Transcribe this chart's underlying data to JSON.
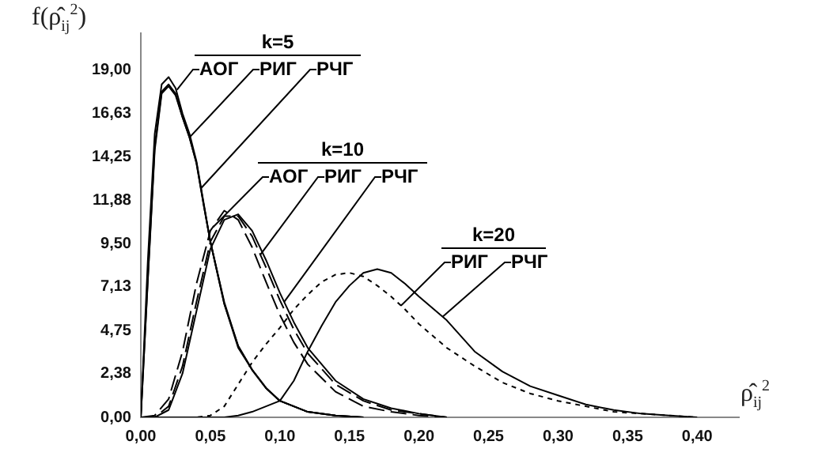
{
  "chart_data": {
    "type": "line",
    "ylabel": "f(ρ̂$_{ij}$$^{2}$)",
    "xlabel": "ρ̂$_{ij}$$^{2}$",
    "annotations": [
      "k=5",
      {
        "text": "АОГ",
        "x": 0.026,
        "y": 17.9
      },
      {
        "text": "РИГ",
        "x": 0.035,
        "y": 15.3
      },
      {
        "text": "РЧГ",
        "x": 0.043,
        "y": 12.5
      },
      "k=10",
      {
        "text": "АОГ",
        "x": 0.052,
        "y": 10.4
      },
      {
        "text": "РИГ",
        "x": 0.086,
        "y": 8.9
      },
      {
        "text": "РЧГ",
        "x": 0.103,
        "y": 6.3
      },
      "k=20",
      {
        "text": "РИГ",
        "x": 0.187,
        "y": 6.1
      },
      {
        "text": "РЧГ",
        "x": 0.217,
        "y": 5.5
      }
    ],
    "xlim": [
      0,
      0.43
    ],
    "ylim": [
      0,
      21
    ],
    "xticks": [
      {
        "value": 0,
        "label": "0,00"
      },
      {
        "value": 0.05,
        "label": "0,05"
      },
      {
        "value": 0.1,
        "label": "0,10"
      },
      {
        "value": 0.15,
        "label": "0,15"
      },
      {
        "value": 0.2,
        "label": "0,20"
      },
      {
        "value": 0.25,
        "label": "0,25"
      },
      {
        "value": 0.3,
        "label": "0,30"
      },
      {
        "value": 0.35,
        "label": "0,35"
      },
      {
        "value": 0.4,
        "label": "0,40"
      }
    ],
    "yticks": [
      {
        "value": 0,
        "label": "0,00"
      },
      {
        "value": 2.38,
        "label": "2,38"
      },
      {
        "value": 4.75,
        "label": "4,75"
      },
      {
        "value": 7.13,
        "label": "7,13"
      },
      {
        "value": 9.5,
        "label": "9,50"
      },
      {
        "value": 11.88,
        "label": "11,88"
      },
      {
        "value": 14.25,
        "label": "14,25"
      },
      {
        "value": 16.63,
        "label": "16,63"
      },
      {
        "value": 19,
        "label": "19,00"
      }
    ],
    "grid": false,
    "marker": "none",
    "series": [
      {
        "color": "#000000",
        "line_style": "solid",
        "x": [
          0,
          0.005,
          0.01,
          0.015,
          0.02,
          0.025,
          0.03,
          0.035,
          0.04,
          0.045,
          0.05,
          0.06,
          0.07,
          0.08,
          0.09,
          0.1,
          0.12,
          0.14,
          0.16
        ],
        "values": [
          0,
          8.5,
          15.5,
          18.2,
          18.6,
          18,
          16.6,
          15.5,
          14,
          11.8,
          9.6,
          6.2,
          3.8,
          2.6,
          1.6,
          0.9,
          0.3,
          0.1,
          0
        ]
      },
      {
        "color": "#000000",
        "line_style": "solid",
        "x": [
          0,
          0.005,
          0.01,
          0.015,
          0.02,
          0.025,
          0.03,
          0.035,
          0.04,
          0.045,
          0.05,
          0.06,
          0.07,
          0.08,
          0.09,
          0.1,
          0.12,
          0.14,
          0.16
        ],
        "values": [
          0,
          7.5,
          14.8,
          17.8,
          18.2,
          17.7,
          16.4,
          15.3,
          13.9,
          11.7,
          9.6,
          6.2,
          3.9,
          2.6,
          1.6,
          0.9,
          0.3,
          0.1,
          0
        ]
      },
      {
        "color": "#000000",
        "line_style": "solid",
        "x": [
          0,
          0.005,
          0.01,
          0.015,
          0.02,
          0.025,
          0.03,
          0.035,
          0.04,
          0.045,
          0.05,
          0.06,
          0.07,
          0.08,
          0.09,
          0.1,
          0.12,
          0.14,
          0.16
        ],
        "values": [
          0,
          7.4,
          14.6,
          17.7,
          18.1,
          17.6,
          16.4,
          15.3,
          13.9,
          11.7,
          9.6,
          6.3,
          3.9,
          2.6,
          1.6,
          0.9,
          0.3,
          0.1,
          0
        ]
      },
      {
        "color": "#000000",
        "line_style": "dashed",
        "x": [
          0,
          0.01,
          0.02,
          0.03,
          0.04,
          0.05,
          0.06,
          0.07,
          0.08,
          0.09,
          0.1,
          0.11,
          0.12,
          0.14,
          0.16,
          0.18,
          0.2,
          0.22
        ],
        "values": [
          0,
          0.1,
          1,
          3.6,
          7.3,
          10.2,
          11.3,
          10.8,
          9.3,
          7.4,
          5.6,
          4.1,
          2.9,
          1.4,
          0.6,
          0.3,
          0.1,
          0
        ]
      },
      {
        "color": "#000000",
        "line_style": "dashed",
        "x": [
          0,
          0.01,
          0.02,
          0.03,
          0.04,
          0.05,
          0.06,
          0.07,
          0.08,
          0.09,
          0.1,
          0.11,
          0.12,
          0.14,
          0.16,
          0.18,
          0.2,
          0.22
        ],
        "values": [
          0,
          0,
          0.6,
          2.8,
          6.3,
          9.6,
          11,
          11,
          9.9,
          8.2,
          6.4,
          4.8,
          3.5,
          1.8,
          0.9,
          0.4,
          0.2,
          0
        ]
      },
      {
        "color": "#000000",
        "line_style": "solid",
        "x": [
          0,
          0.01,
          0.02,
          0.03,
          0.04,
          0.05,
          0.06,
          0.07,
          0.08,
          0.09,
          0.1,
          0.11,
          0.12,
          0.14,
          0.16,
          0.18,
          0.2,
          0.22
        ],
        "values": [
          0,
          0,
          0.4,
          2.4,
          5.8,
          9.2,
          10.8,
          11.1,
          10.2,
          8.6,
          6.8,
          5.2,
          3.8,
          2,
          1,
          0.5,
          0.2,
          0
        ]
      },
      {
        "color": "#000000",
        "line_style": "dotted",
        "x": [
          0,
          0.04,
          0.05,
          0.06,
          0.07,
          0.08,
          0.09,
          0.1,
          0.11,
          0.12,
          0.13,
          0.14,
          0.15,
          0.16,
          0.17,
          0.18,
          0.19,
          0.2,
          0.22,
          0.24,
          0.26,
          0.28,
          0.3,
          0.32,
          0.34,
          0.36,
          0.38,
          0.4
        ],
        "values": [
          0,
          0,
          0.1,
          0.6,
          1.8,
          3,
          4,
          4.9,
          5.9,
          6.7,
          7.4,
          7.8,
          7.9,
          7.7,
          7.2,
          6.6,
          5.9,
          5.1,
          3.8,
          2.8,
          1.9,
          1.3,
          0.9,
          0.6,
          0.3,
          0.2,
          0.1,
          0
        ]
      },
      {
        "color": "#000000",
        "line_style": "solid",
        "x": [
          0,
          0.06,
          0.07,
          0.08,
          0.09,
          0.1,
          0.11,
          0.12,
          0.13,
          0.14,
          0.15,
          0.16,
          0.17,
          0.18,
          0.19,
          0.2,
          0.22,
          0.24,
          0.26,
          0.28,
          0.3,
          0.32,
          0.34,
          0.36,
          0.38,
          0.4
        ],
        "values": [
          0,
          0,
          0.1,
          0.3,
          0.6,
          0.9,
          2,
          3.6,
          5,
          6.3,
          7.2,
          7.9,
          8.1,
          7.9,
          7.3,
          6.6,
          5.3,
          3.6,
          2.5,
          1.7,
          1.2,
          0.7,
          0.4,
          0.2,
          0.1,
          0
        ]
      }
    ]
  }
}
